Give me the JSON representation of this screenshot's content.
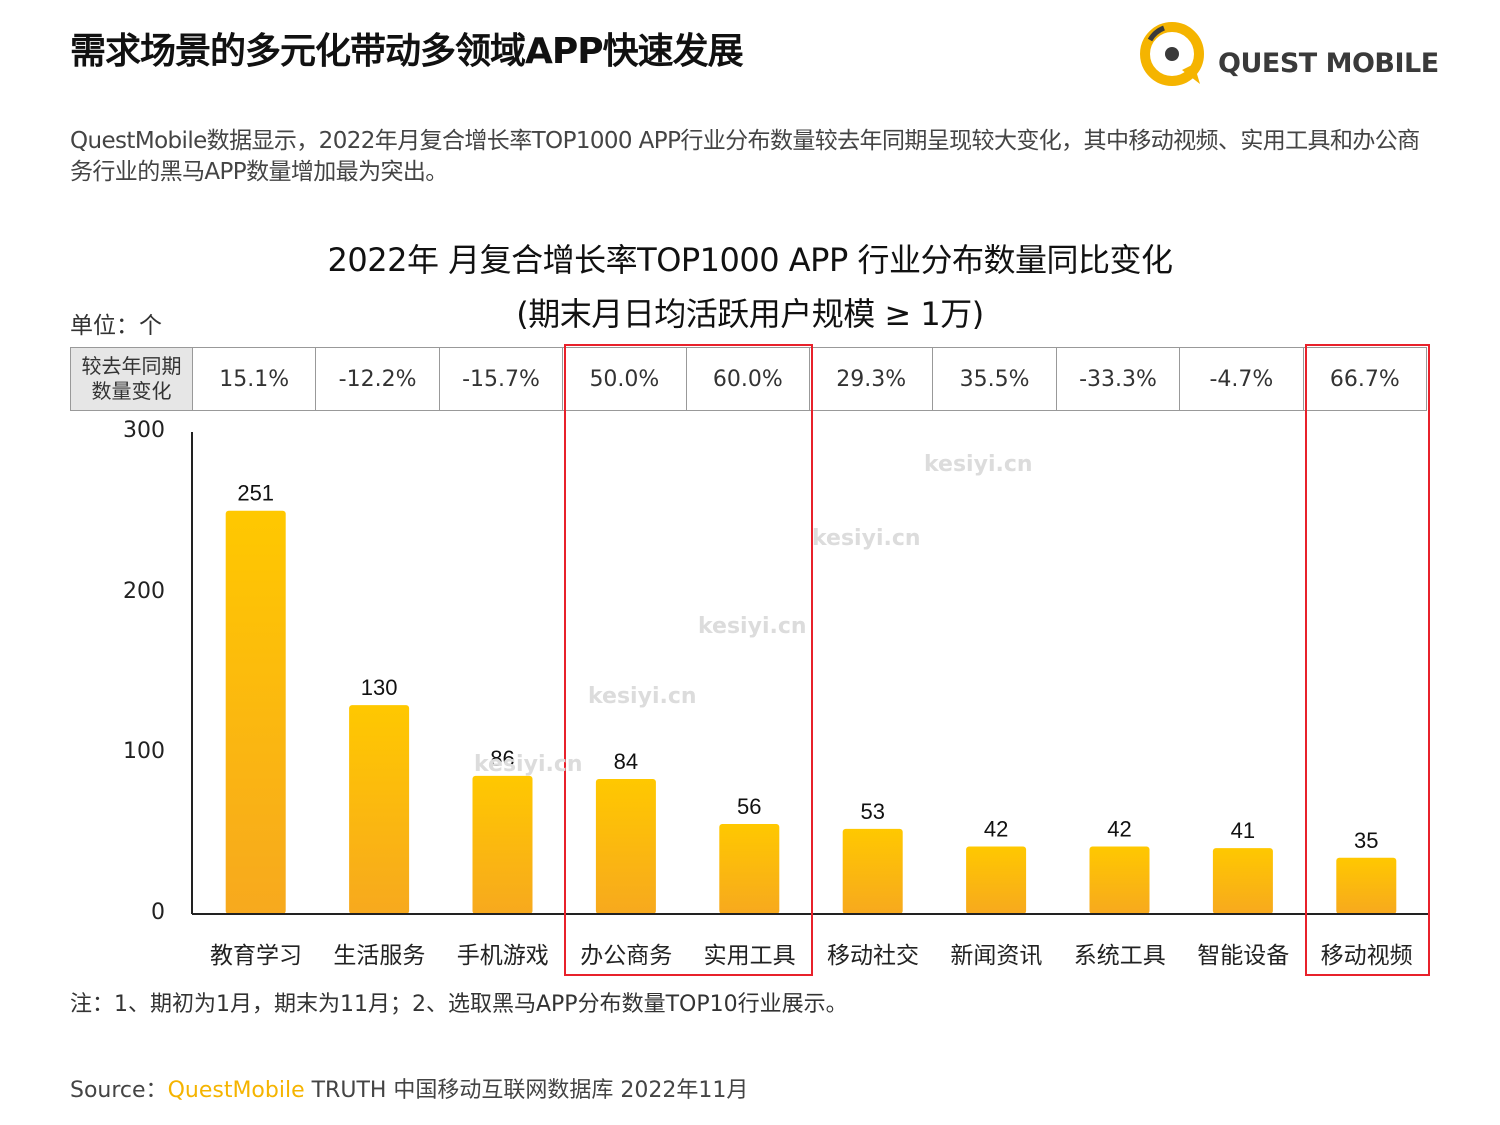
{
  "header": {
    "title": "需求场景的多元化带动多领域APP快速发展",
    "logo_text": "QUEST MOBILE"
  },
  "summary": "QuestMobile数据显示，2022年月复合增长率TOP1000 APP行业分布数量较去年同期呈现较大变化，其中移动视频、实用工具和办公商务行业的黑马APP数量增加最为突出。",
  "unit_label": "单位：个",
  "table": {
    "header_line1": "较去年同期",
    "header_line2": "数量变化"
  },
  "footer": {
    "note": "注：1、期初为1月，期末为11月；2、选取黑马APP分布数量TOP10行业展示。",
    "source_prefix": "Source：",
    "source_brand": "QuestMobile",
    "source_rest": " TRUTH 中国移动互联网数据库 2022年11月"
  },
  "watermark": "kesiyi.cn",
  "colors": {
    "bar_top": "#ffc800",
    "bar_bottom": "#f7a91e",
    "highlight": "#e8212b",
    "brand": "#f5b400"
  },
  "chart_data": {
    "type": "bar",
    "title": "2022年 月复合增长率TOP1000 APP 行业分布数量同比变化",
    "subtitle": "(期末月日均活跃用户规模 ≥ 1万)",
    "categories": [
      "教育学习",
      "生活服务",
      "手机游戏",
      "办公商务",
      "实用工具",
      "移动社交",
      "新闻资讯",
      "系统工具",
      "智能设备",
      "移动视频"
    ],
    "values": [
      251,
      130,
      86,
      84,
      56,
      53,
      42,
      42,
      41,
      35
    ],
    "yoy_change": [
      "15.1%",
      "-12.2%",
      "-15.7%",
      "50.0%",
      "60.0%",
      "29.3%",
      "35.5%",
      "-33.3%",
      "-4.7%",
      "66.7%"
    ],
    "y_ticks": [
      "0",
      "100",
      "200",
      "300"
    ],
    "ylim": [
      0,
      300
    ],
    "xlabel": "",
    "ylabel": "",
    "highlighted_categories": [
      "办公商务",
      "实用工具",
      "移动视频"
    ],
    "grid": false,
    "legend": "none"
  }
}
